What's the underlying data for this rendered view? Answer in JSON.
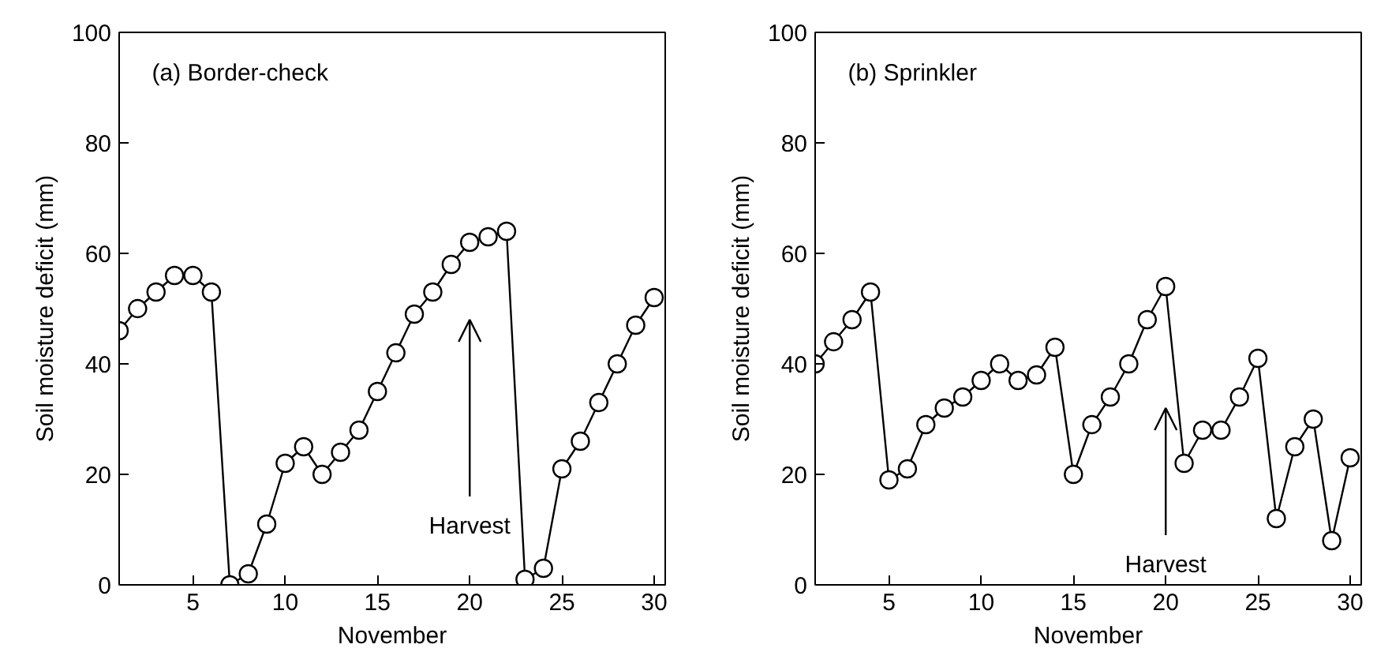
{
  "chart_data": [
    {
      "type": "line",
      "title": "(a) Border-check",
      "xlabel": "November",
      "ylabel": "Soil moisture deficit (mm)",
      "x": [
        1,
        2,
        3,
        4,
        5,
        6,
        7,
        8,
        9,
        10,
        11,
        12,
        13,
        14,
        15,
        16,
        17,
        18,
        19,
        20,
        21,
        22,
        23,
        24,
        25,
        26,
        27,
        28,
        29,
        30
      ],
      "series": [
        {
          "color": "#000000",
          "values": [
            46,
            50,
            53,
            56,
            56,
            53,
            0,
            2,
            11,
            22,
            25,
            20,
            24,
            28,
            35,
            42,
            49,
            53,
            58,
            62,
            63,
            64,
            1,
            3,
            21,
            26,
            33,
            40,
            47,
            52
          ]
        }
      ],
      "xlim": [
        1,
        30.6
      ],
      "ylim": [
        0,
        100
      ],
      "xticks": [
        5,
        10,
        15,
        20,
        25,
        30
      ],
      "yticks": [
        0,
        20,
        40,
        60,
        80,
        100
      ],
      "marker": "circle",
      "line_style": "solid",
      "grid": false,
      "annotations": [
        "Harvest"
      ]
    },
    {
      "type": "line",
      "title": "(b) Sprinkler",
      "xlabel": "November",
      "ylabel": "Soil moisture deficit (mm)",
      "x": [
        1,
        2,
        3,
        4,
        5,
        6,
        7,
        8,
        9,
        10,
        11,
        12,
        13,
        14,
        15,
        16,
        17,
        18,
        19,
        20,
        21,
        22,
        23,
        24,
        25,
        26,
        27,
        28,
        29,
        30
      ],
      "series": [
        {
          "color": "#000000",
          "values": [
            40,
            44,
            48,
            53,
            19,
            21,
            29,
            32,
            34,
            37,
            40,
            37,
            38,
            43,
            20,
            29,
            34,
            40,
            48,
            54,
            22,
            28,
            28,
            34,
            41,
            12,
            25,
            30,
            8,
            23
          ]
        }
      ],
      "xlim": [
        1,
        30.6
      ],
      "ylim": [
        0,
        100
      ],
      "xticks": [
        5,
        10,
        15,
        20,
        25,
        30
      ],
      "yticks": [
        0,
        20,
        40,
        60,
        80,
        100
      ],
      "marker": "circle",
      "line_style": "solid",
      "grid": false,
      "annotations": [
        "Harvest"
      ]
    }
  ]
}
